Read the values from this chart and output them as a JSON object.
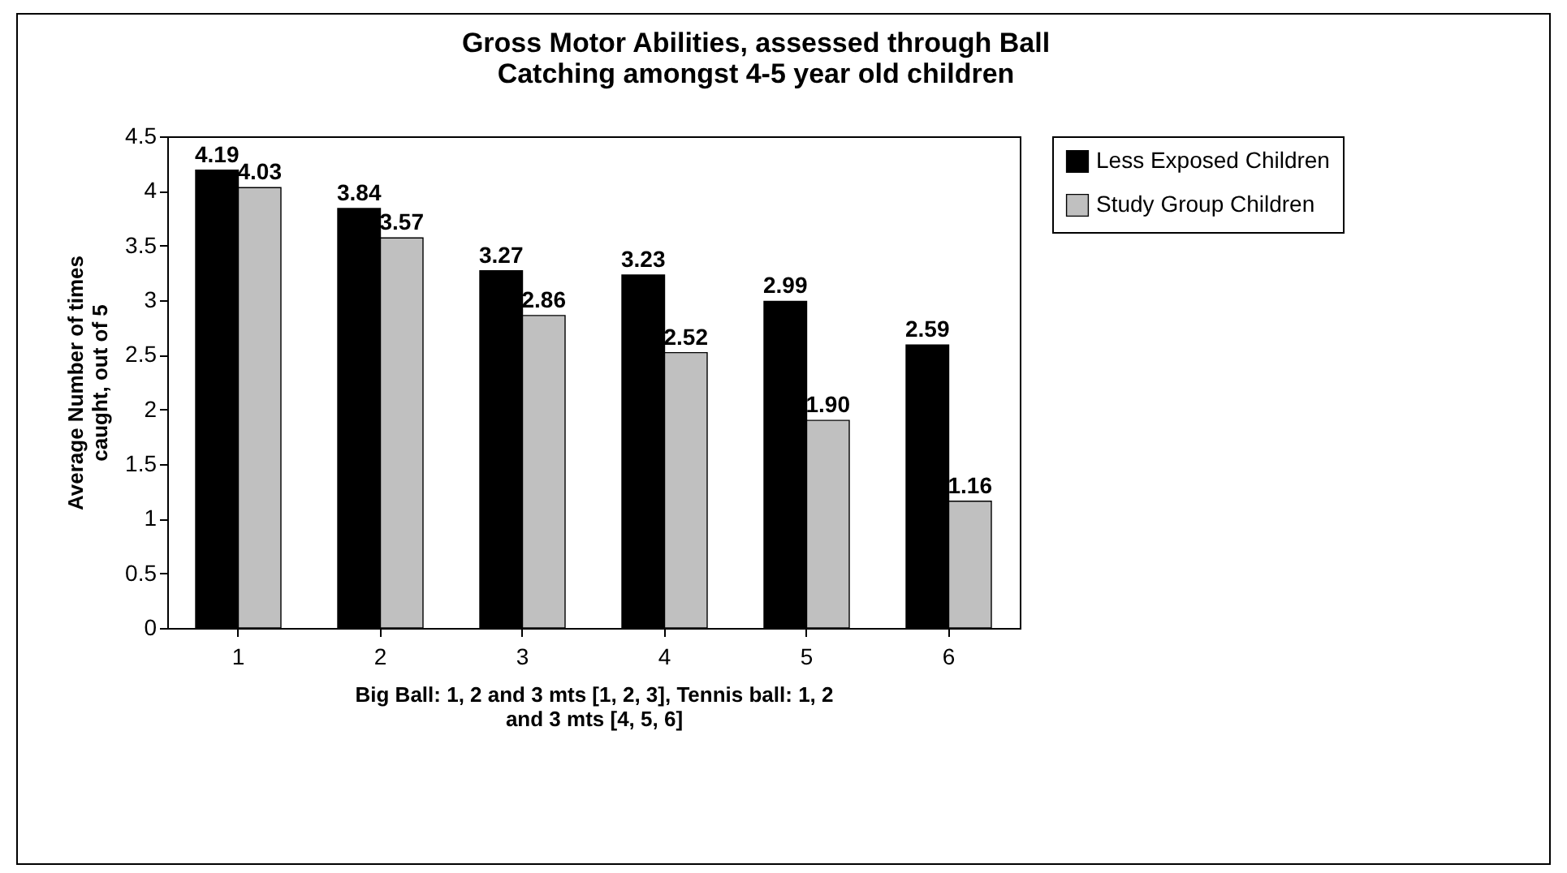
{
  "chart_data": {
    "type": "bar",
    "title": "Gross Motor Abilities, assessed through Ball Catching amongst 4-5 year old children",
    "xlabel": "Big Ball: 1, 2 and 3 mts [1, 2, 3], Tennis ball: 1, 2 and 3 mts [4, 5, 6]",
    "ylabel": "Average Number of times caught, out of 5",
    "categories": [
      "1",
      "2",
      "3",
      "4",
      "5",
      "6"
    ],
    "series": [
      {
        "name": "Less Exposed Children",
        "color": "#000000",
        "values": [
          4.19,
          3.84,
          3.27,
          3.23,
          2.99,
          2.59
        ],
        "value_labels": [
          "4.19",
          "3.84",
          "3.27",
          "3.23",
          "2.99",
          "2.59"
        ]
      },
      {
        "name": "Study Group Children",
        "color": "#c0c0c0",
        "values": [
          4.03,
          3.57,
          2.86,
          2.52,
          1.9,
          1.16
        ],
        "value_labels": [
          "4.03",
          "3.57",
          "2.86",
          "2.52",
          "1.90",
          "1.16"
        ]
      }
    ],
    "ylim": [
      0,
      4.5
    ],
    "yticks": [
      0,
      0.5,
      1,
      1.5,
      2,
      2.5,
      3,
      3.5,
      4,
      4.5
    ],
    "grid": false,
    "legend": "right"
  }
}
